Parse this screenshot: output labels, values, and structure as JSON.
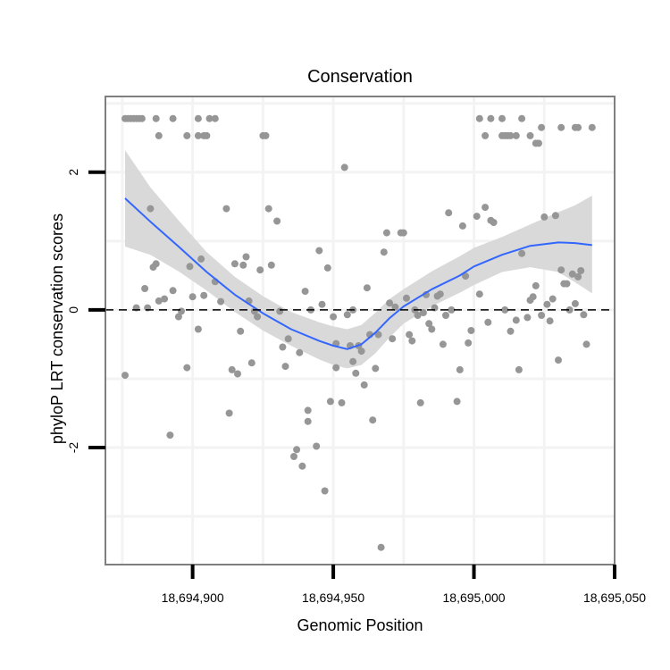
{
  "chart_data": {
    "type": "scatter",
    "title": "Conservation",
    "xlabel": "Genomic Position",
    "ylabel": "phyloP LRT conservation scores",
    "xlim": [
      18694869,
      18695050
    ],
    "ylim": [
      -3.7,
      3.1
    ],
    "x_ticks": [
      18694900,
      18694950,
      18695000,
      18695050
    ],
    "x_tick_labels": [
      "18,694,900",
      "18,694,950",
      "18,695,000",
      "18,695,050"
    ],
    "y_ticks": [
      -2,
      0,
      2
    ],
    "y_tick_labels": [
      "-2",
      "0",
      "2"
    ],
    "x_minor_gridlines": [
      18694875,
      18694925,
      18694975,
      18695025
    ],
    "y_minor_gridlines": [
      -3,
      -1,
      1,
      3
    ],
    "reference_line": {
      "y": 0,
      "style": "dashed"
    },
    "grid": true,
    "colors": {
      "points": "#969696",
      "smooth_line": "#3366ff",
      "ribbon": "#d9d9d9",
      "reference": "#000000",
      "panel_border": "#7f7f7f",
      "gridline": "#f3f3f3"
    },
    "points": [
      [
        18694876,
        2.78
      ],
      [
        18694877,
        2.78
      ],
      [
        18694878,
        2.78
      ],
      [
        18694879,
        2.78
      ],
      [
        18694880,
        2.78
      ],
      [
        18694881,
        2.78
      ],
      [
        18694882,
        2.78
      ],
      [
        18694887,
        2.78
      ],
      [
        18694893,
        2.78
      ],
      [
        18694902,
        2.78
      ],
      [
        18694906,
        2.78
      ],
      [
        18694908,
        2.78
      ],
      [
        18694888,
        2.53
      ],
      [
        18694898,
        2.53
      ],
      [
        18694902,
        2.53
      ],
      [
        18694904,
        2.53
      ],
      [
        18694905,
        2.53
      ],
      [
        18694925,
        2.53
      ],
      [
        18694926,
        2.53
      ],
      [
        18695002,
        2.78
      ],
      [
        18695006,
        2.78
      ],
      [
        18695010,
        2.78
      ],
      [
        18695017,
        2.78
      ],
      [
        18695004,
        2.53
      ],
      [
        18695010,
        2.53
      ],
      [
        18695011,
        2.53
      ],
      [
        18695012,
        2.53
      ],
      [
        18695013,
        2.53
      ],
      [
        18695015,
        2.53
      ],
      [
        18695020,
        2.53
      ],
      [
        18695022,
        2.42
      ],
      [
        18695023,
        2.42
      ],
      [
        18695024,
        2.65
      ],
      [
        18695031,
        2.65
      ],
      [
        18695036,
        2.65
      ],
      [
        18695037,
        2.65
      ],
      [
        18695042,
        2.65
      ],
      [
        18694954,
        2.07
      ],
      [
        18694876,
        -0.95
      ],
      [
        18694880,
        0.03
      ],
      [
        18694883,
        0.31
      ],
      [
        18694884,
        0.03
      ],
      [
        18694885,
        1.47
      ],
      [
        18694886,
        0.62
      ],
      [
        18694887,
        0.67
      ],
      [
        18694888,
        0.13
      ],
      [
        18694890,
        0.16
      ],
      [
        18694892,
        -1.82
      ],
      [
        18694893,
        0.28
      ],
      [
        18694895,
        -0.1
      ],
      [
        18694896,
        -0.02
      ],
      [
        18694898,
        -0.84
      ],
      [
        18694899,
        0.63
      ],
      [
        18694900,
        0.19
      ],
      [
        18694902,
        -0.28
      ],
      [
        18694903,
        0.74
      ],
      [
        18694904,
        0.21
      ],
      [
        18694908,
        0.41
      ],
      [
        18694910,
        0.12
      ],
      [
        18694912,
        1.47
      ],
      [
        18694913,
        -1.5
      ],
      [
        18694914,
        -0.87
      ],
      [
        18694915,
        0.67
      ],
      [
        18694916,
        -0.93
      ],
      [
        18694917,
        -0.31
      ],
      [
        18694918,
        0.65
      ],
      [
        18694919,
        0.77
      ],
      [
        18694920,
        0.13
      ],
      [
        18694921,
        -0.77
      ],
      [
        18694922,
        -0.02
      ],
      [
        18694923,
        -0.1
      ],
      [
        18694924,
        0.58
      ],
      [
        18694927,
        1.47
      ],
      [
        18694928,
        0.65
      ],
      [
        18694930,
        1.29
      ],
      [
        18694931,
        -0.02
      ],
      [
        18694932,
        -0.54
      ],
      [
        18694933,
        -0.82
      ],
      [
        18694934,
        -0.42
      ],
      [
        18694936,
        -2.13
      ],
      [
        18694937,
        -2.03
      ],
      [
        18694938,
        -0.62
      ],
      [
        18694939,
        -2.27
      ],
      [
        18694940,
        0.27
      ],
      [
        18694941,
        -1.46
      ],
      [
        18694941,
        -1.62
      ],
      [
        18694942,
        0.0
      ],
      [
        18694944,
        -1.98
      ],
      [
        18694945,
        0.86
      ],
      [
        18694946,
        0.08
      ],
      [
        18694947,
        -2.63
      ],
      [
        18694948,
        0.61
      ],
      [
        18694949,
        -1.33
      ],
      [
        18694950,
        -0.1
      ],
      [
        18694951,
        -0.84
      ],
      [
        18694951,
        -0.49
      ],
      [
        18694953,
        -1.35
      ],
      [
        18694955,
        -0.07
      ],
      [
        18694956,
        -0.52
      ],
      [
        18694957,
        0.0
      ],
      [
        18694957,
        -0.75
      ],
      [
        18694958,
        -0.92
      ],
      [
        18694959,
        -0.52
      ],
      [
        18694960,
        -0.6
      ],
      [
        18694961,
        -1.09
      ],
      [
        18694962,
        0.32
      ],
      [
        18694963,
        -0.36
      ],
      [
        18694964,
        -1.6
      ],
      [
        18694965,
        -0.85
      ],
      [
        18694966,
        -0.36
      ],
      [
        18694967,
        -3.45
      ],
      [
        18694968,
        0.84
      ],
      [
        18694969,
        1.12
      ],
      [
        18694970,
        0.1
      ],
      [
        18694971,
        -0.42
      ],
      [
        18694972,
        0.04
      ],
      [
        18694974,
        1.12
      ],
      [
        18694975,
        1.12
      ],
      [
        18694976,
        0.17
      ],
      [
        18694977,
        -0.36
      ],
      [
        18694978,
        -0.45
      ],
      [
        18694979,
        0.0
      ],
      [
        18694980,
        -0.08
      ],
      [
        18694981,
        -1.35
      ],
      [
        18694982,
        -0.04
      ],
      [
        18694983,
        0.22
      ],
      [
        18694984,
        -0.2
      ],
      [
        18694985,
        -0.28
      ],
      [
        18694986,
        0.03
      ],
      [
        18694987,
        0.2
      ],
      [
        18694988,
        0.23
      ],
      [
        18694989,
        -0.5
      ],
      [
        18694990,
        -0.08
      ],
      [
        18694991,
        1.41
      ],
      [
        18694992,
        0.0
      ],
      [
        18694994,
        -1.33
      ],
      [
        18694995,
        -0.87
      ],
      [
        18694996,
        1.22
      ],
      [
        18694997,
        0.49
      ],
      [
        18694998,
        -0.48
      ],
      [
        18694999,
        -0.3
      ],
      [
        18695001,
        1.36
      ],
      [
        18695002,
        0.23
      ],
      [
        18695004,
        1.49
      ],
      [
        18695005,
        -0.18
      ],
      [
        18695006,
        1.3
      ],
      [
        18695007,
        1.27
      ],
      [
        18695011,
        0.0
      ],
      [
        18695013,
        -0.31
      ],
      [
        18695015,
        -0.15
      ],
      [
        18695016,
        -0.87
      ],
      [
        18695017,
        0.82
      ],
      [
        18695019,
        -0.11
      ],
      [
        18695020,
        0.14
      ],
      [
        18695021,
        0.19
      ],
      [
        18695022,
        0.35
      ],
      [
        18695024,
        -0.08
      ],
      [
        18695025,
        1.35
      ],
      [
        18695026,
        0.08
      ],
      [
        18695027,
        -0.16
      ],
      [
        18695028,
        0.16
      ],
      [
        18695029,
        1.37
      ],
      [
        18695030,
        -0.73
      ],
      [
        18695031,
        0.58
      ],
      [
        18695032,
        0.38
      ],
      [
        18695033,
        0.38
      ],
      [
        18695035,
        0.52
      ],
      [
        18695036,
        0.09
      ],
      [
        18695037,
        0.48
      ],
      [
        18695038,
        0.57
      ],
      [
        18695039,
        -0.07
      ],
      [
        18695040,
        -0.5
      ],
      [
        18695034,
        0.0
      ]
    ],
    "smooth_fit": [
      {
        "x": 18694876,
        "y": 1.62,
        "lo": 0.92,
        "hi": 2.32
      },
      {
        "x": 18694885,
        "y": 1.28,
        "lo": 0.8,
        "hi": 1.78
      },
      {
        "x": 18694895,
        "y": 0.92,
        "lo": 0.56,
        "hi": 1.3
      },
      {
        "x": 18694905,
        "y": 0.55,
        "lo": 0.28,
        "hi": 0.84
      },
      {
        "x": 18694915,
        "y": 0.22,
        "lo": -0.03,
        "hi": 0.48
      },
      {
        "x": 18694925,
        "y": -0.05,
        "lo": -0.3,
        "hi": 0.2
      },
      {
        "x": 18694935,
        "y": -0.28,
        "lo": -0.52,
        "hi": -0.03
      },
      {
        "x": 18694945,
        "y": -0.45,
        "lo": -0.72,
        "hi": -0.18
      },
      {
        "x": 18694950,
        "y": -0.52,
        "lo": -0.8,
        "hi": -0.24
      },
      {
        "x": 18694955,
        "y": -0.57,
        "lo": -0.85,
        "hi": -0.28
      },
      {
        "x": 18694960,
        "y": -0.5,
        "lo": -0.8,
        "hi": -0.22
      },
      {
        "x": 18694965,
        "y": -0.33,
        "lo": -0.63,
        "hi": -0.04
      },
      {
        "x": 18694970,
        "y": -0.12,
        "lo": -0.4,
        "hi": 0.16
      },
      {
        "x": 18694975,
        "y": 0.05,
        "lo": -0.2,
        "hi": 0.3
      },
      {
        "x": 18694985,
        "y": 0.3,
        "lo": 0.05,
        "hi": 0.56
      },
      {
        "x": 18694995,
        "y": 0.5,
        "lo": 0.25,
        "hi": 0.78
      },
      {
        "x": 18695000,
        "y": 0.63,
        "lo": 0.36,
        "hi": 0.9
      },
      {
        "x": 18695010,
        "y": 0.8,
        "lo": 0.55,
        "hi": 1.06
      },
      {
        "x": 18695020,
        "y": 0.93,
        "lo": 0.62,
        "hi": 1.24
      },
      {
        "x": 18695030,
        "y": 0.98,
        "lo": 0.55,
        "hi": 1.42
      },
      {
        "x": 18695036,
        "y": 0.97,
        "lo": 0.4,
        "hi": 1.52
      },
      {
        "x": 18695042,
        "y": 0.94,
        "lo": 0.24,
        "hi": 1.66
      }
    ]
  }
}
